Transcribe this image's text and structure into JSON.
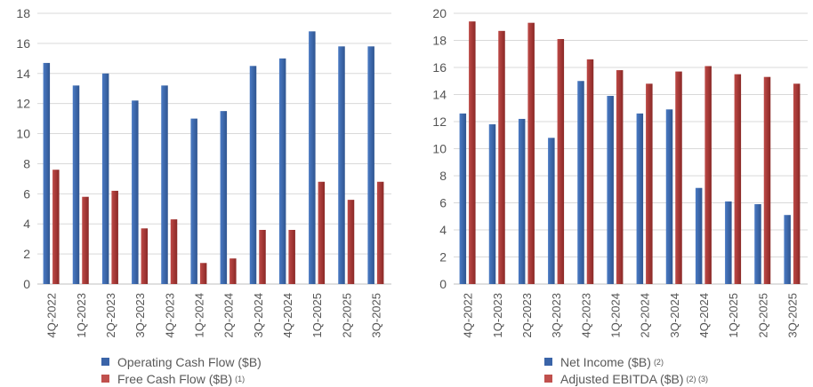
{
  "colors": {
    "blue": "#3A64A8",
    "red": "#9E2F2D",
    "grid": "#D9D9D9",
    "axis": "#BFBFBF"
  },
  "chart_data": [
    {
      "type": "bar",
      "categories": [
        "4Q-2022",
        "1Q-2023",
        "2Q-2023",
        "3Q-2023",
        "4Q-2023",
        "1Q-2024",
        "2Q-2024",
        "3Q-2024",
        "4Q-2024",
        "1Q-2025",
        "2Q-2025",
        "3Q-2025"
      ],
      "series": [
        {
          "name": "Operating Cash Flow ($B)",
          "values": [
            14.7,
            13.2,
            14.0,
            12.2,
            13.2,
            11.0,
            11.5,
            14.5,
            15.0,
            16.8,
            15.8,
            15.8
          ]
        },
        {
          "name": "Free Cash Flow ($B)",
          "note": "(1)",
          "values": [
            7.6,
            5.8,
            6.2,
            3.7,
            4.3,
            1.4,
            1.7,
            3.6,
            3.6,
            6.8,
            5.6,
            6.8
          ]
        }
      ],
      "ylim": [
        0,
        18
      ],
      "yticks": [
        0,
        2,
        4,
        6,
        8,
        10,
        12,
        14,
        16,
        18
      ],
      "grid": true,
      "legend_position": "bottom"
    },
    {
      "type": "bar",
      "categories": [
        "4Q-2022",
        "1Q-2023",
        "2Q-2023",
        "3Q-2023",
        "4Q-2023",
        "1Q-2024",
        "2Q-2024",
        "3Q-2024",
        "4Q-2024",
        "1Q-2025",
        "2Q-2025",
        "3Q-2025"
      ],
      "series": [
        {
          "name": "Net Income ($B)",
          "note": "(2)",
          "values": [
            12.6,
            11.8,
            12.2,
            10.8,
            15.0,
            13.9,
            12.6,
            12.9,
            7.1,
            6.1,
            5.9,
            5.1
          ]
        },
        {
          "name": "Adjusted EBITDA ($B)",
          "note": "(2) (3)",
          "values": [
            19.4,
            18.7,
            19.3,
            18.1,
            16.6,
            15.8,
            14.8,
            15.7,
            16.1,
            15.5,
            15.3,
            14.8
          ]
        }
      ],
      "ylim": [
        0,
        20
      ],
      "yticks": [
        0,
        2,
        4,
        6,
        8,
        10,
        12,
        14,
        16,
        18,
        20
      ],
      "grid": true,
      "legend_position": "bottom"
    }
  ]
}
